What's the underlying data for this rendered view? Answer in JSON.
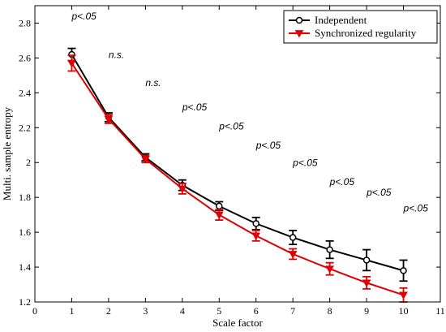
{
  "chart_data": {
    "type": "line",
    "xlabel": "Scale factor",
    "ylabel": "Multi. sample entropy",
    "xlim": [
      0,
      11
    ],
    "ylim": [
      1.2,
      2.9
    ],
    "xticks": [
      "0",
      "1",
      "2",
      "3",
      "4",
      "5",
      "6",
      "7",
      "8",
      "9",
      "10",
      "11"
    ],
    "yticks": [
      "1.2",
      "1.4",
      "1.6",
      "1.8",
      "2",
      "2.2",
      "2.4",
      "2.6",
      "2.8"
    ],
    "legend_position": "top-right",
    "x": [
      1,
      2,
      3,
      4,
      5,
      6,
      7,
      8,
      9,
      10
    ],
    "series": [
      {
        "name": "Independent",
        "color": "#000000",
        "marker": "circle",
        "values": [
          2.62,
          2.26,
          2.03,
          1.87,
          1.75,
          1.65,
          1.57,
          1.5,
          1.44,
          1.38
        ],
        "errors": [
          0.035,
          0.025,
          0.02,
          0.03,
          0.025,
          0.035,
          0.04,
          0.05,
          0.06,
          0.06
        ]
      },
      {
        "name": "Synchronized regularity",
        "color": "#e00000",
        "marker": "triangle-down",
        "values": [
          2.57,
          2.25,
          2.02,
          1.85,
          1.7,
          1.58,
          1.475,
          1.39,
          1.31,
          1.24
        ],
        "errors": [
          0.045,
          0.025,
          0.02,
          0.03,
          0.03,
          0.03,
          0.03,
          0.035,
          0.035,
          0.04
        ]
      }
    ],
    "annotations": [
      {
        "x": 1,
        "y": 2.82,
        "text": "p<.05"
      },
      {
        "x": 2,
        "y": 2.6,
        "text": "n.s."
      },
      {
        "x": 3,
        "y": 2.44,
        "text": "n.s."
      },
      {
        "x": 4,
        "y": 2.3,
        "text": "p<.05"
      },
      {
        "x": 5,
        "y": 2.19,
        "text": "p<.05"
      },
      {
        "x": 6,
        "y": 2.08,
        "text": "p<.05"
      },
      {
        "x": 7,
        "y": 1.98,
        "text": "p<.05"
      },
      {
        "x": 8,
        "y": 1.87,
        "text": "p<.05"
      },
      {
        "x": 9,
        "y": 1.81,
        "text": "p<.05"
      },
      {
        "x": 10,
        "y": 1.72,
        "text": "p<.05"
      }
    ]
  }
}
